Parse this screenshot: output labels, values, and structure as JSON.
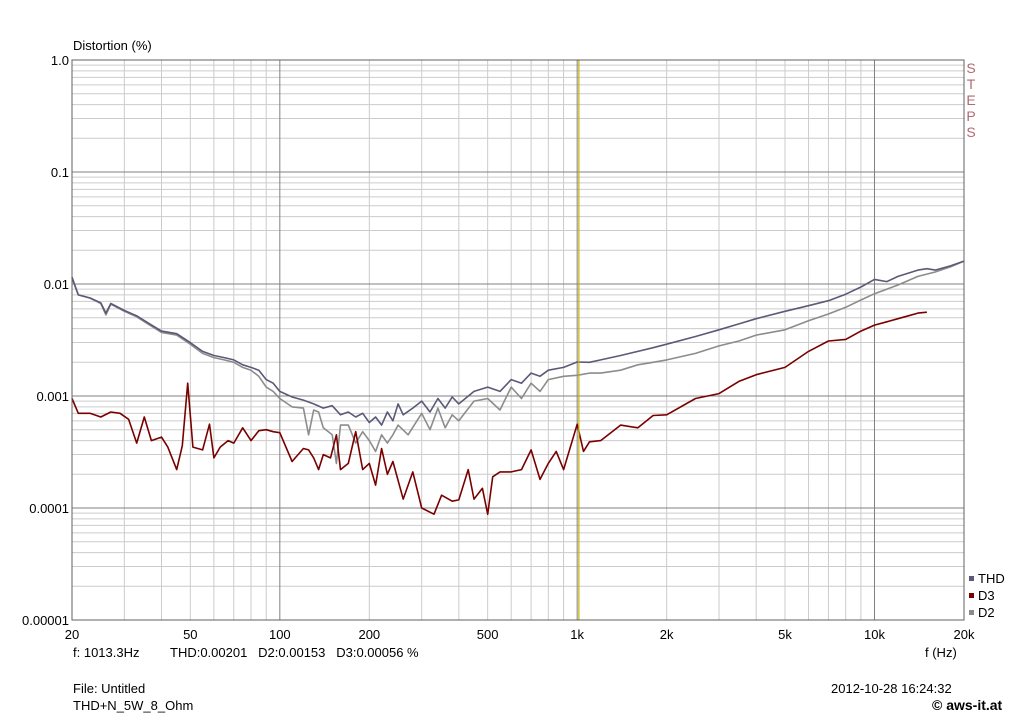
{
  "chart_data": {
    "type": "line",
    "ylabel": "Distortion (%)",
    "xlabel": "f (Hz)",
    "x_scale": "log",
    "y_scale": "log",
    "xlim": [
      20,
      20000
    ],
    "ylim": [
      1e-05,
      1.0
    ],
    "x_ticks": [
      {
        "v": 20,
        "label": "20"
      },
      {
        "v": 50,
        "label": "50"
      },
      {
        "v": 100,
        "label": "100"
      },
      {
        "v": 200,
        "label": "200"
      },
      {
        "v": 500,
        "label": "500"
      },
      {
        "v": 1000,
        "label": "1k"
      },
      {
        "v": 2000,
        "label": "2k"
      },
      {
        "v": 5000,
        "label": "5k"
      },
      {
        "v": 10000,
        "label": "10k"
      },
      {
        "v": 20000,
        "label": "20k"
      }
    ],
    "y_ticks": [
      {
        "v": 1.0,
        "label": "1.0"
      },
      {
        "v": 0.1,
        "label": "0.1"
      },
      {
        "v": 0.01,
        "label": "0.01"
      },
      {
        "v": 0.001,
        "label": "0.001"
      },
      {
        "v": 0.0001,
        "label": "0.0001"
      },
      {
        "v": 1e-05,
        "label": "0.00001"
      }
    ],
    "cursor_x": 1013.3,
    "grid": true,
    "legend_position": "bottom-right",
    "series": [
      {
        "name": "THD",
        "color": "#5a5a78",
        "points": [
          [
            20,
            0.0115
          ],
          [
            21,
            0.008
          ],
          [
            23,
            0.0075
          ],
          [
            25,
            0.0068
          ],
          [
            26,
            0.0055
          ],
          [
            27,
            0.0067
          ],
          [
            30,
            0.0058
          ],
          [
            33,
            0.0052
          ],
          [
            36,
            0.0045
          ],
          [
            40,
            0.0038
          ],
          [
            45,
            0.0036
          ],
          [
            50,
            0.003
          ],
          [
            55,
            0.0025
          ],
          [
            60,
            0.0023
          ],
          [
            65,
            0.0022
          ],
          [
            70,
            0.0021
          ],
          [
            75,
            0.0019
          ],
          [
            80,
            0.0018
          ],
          [
            85,
            0.0017
          ],
          [
            90,
            0.0014
          ],
          [
            95,
            0.0013
          ],
          [
            100,
            0.0011
          ],
          [
            110,
            0.00098
          ],
          [
            120,
            0.00092
          ],
          [
            130,
            0.00085
          ],
          [
            140,
            0.00078
          ],
          [
            150,
            0.00082
          ],
          [
            160,
            0.00068
          ],
          [
            170,
            0.00072
          ],
          [
            180,
            0.00065
          ],
          [
            190,
            0.0007
          ],
          [
            200,
            0.00058
          ],
          [
            210,
            0.00065
          ],
          [
            220,
            0.00055
          ],
          [
            230,
            0.00072
          ],
          [
            240,
            0.0006
          ],
          [
            250,
            0.00085
          ],
          [
            260,
            0.00068
          ],
          [
            280,
            0.00078
          ],
          [
            300,
            0.0009
          ],
          [
            320,
            0.00072
          ],
          [
            340,
            0.00095
          ],
          [
            360,
            0.00078
          ],
          [
            380,
            0.00098
          ],
          [
            400,
            0.00085
          ],
          [
            450,
            0.0011
          ],
          [
            500,
            0.0012
          ],
          [
            550,
            0.0011
          ],
          [
            600,
            0.0014
          ],
          [
            650,
            0.0013
          ],
          [
            700,
            0.0016
          ],
          [
            750,
            0.0015
          ],
          [
            800,
            0.0017
          ],
          [
            900,
            0.0018
          ],
          [
            1000,
            0.00201
          ],
          [
            1100,
            0.002
          ],
          [
            1200,
            0.0021
          ],
          [
            1400,
            0.0023
          ],
          [
            1600,
            0.0025
          ],
          [
            1800,
            0.0027
          ],
          [
            2000,
            0.0029
          ],
          [
            2500,
            0.0034
          ],
          [
            3000,
            0.0039
          ],
          [
            3500,
            0.0044
          ],
          [
            4000,
            0.0049
          ],
          [
            5000,
            0.0057
          ],
          [
            6000,
            0.0064
          ],
          [
            7000,
            0.0071
          ],
          [
            8000,
            0.0081
          ],
          [
            9000,
            0.0094
          ],
          [
            10000,
            0.011
          ],
          [
            11000,
            0.0105
          ],
          [
            12000,
            0.0117
          ],
          [
            13000,
            0.0125
          ],
          [
            14000,
            0.0133
          ],
          [
            15000,
            0.0137
          ],
          [
            16000,
            0.0133
          ],
          [
            18000,
            0.0145
          ],
          [
            20000,
            0.016
          ]
        ]
      },
      {
        "name": "D3",
        "color": "#7a0000",
        "points": [
          [
            20,
            0.00095
          ],
          [
            21,
            0.0007
          ],
          [
            23,
            0.0007
          ],
          [
            25,
            0.00065
          ],
          [
            27,
            0.00072
          ],
          [
            29,
            0.0007
          ],
          [
            31,
            0.00062
          ],
          [
            33,
            0.00038
          ],
          [
            35,
            0.00065
          ],
          [
            37,
            0.0004
          ],
          [
            40,
            0.00043
          ],
          [
            42,
            0.00035
          ],
          [
            45,
            0.00022
          ],
          [
            47,
            0.00036
          ],
          [
            49,
            0.0013
          ],
          [
            51,
            0.00035
          ],
          [
            55,
            0.00033
          ],
          [
            58,
            0.00056
          ],
          [
            60,
            0.00028
          ],
          [
            63,
            0.00035
          ],
          [
            67,
            0.0004
          ],
          [
            70,
            0.00038
          ],
          [
            75,
            0.00052
          ],
          [
            80,
            0.0004
          ],
          [
            85,
            0.00049
          ],
          [
            90,
            0.0005
          ],
          [
            95,
            0.00048
          ],
          [
            100,
            0.00047
          ],
          [
            110,
            0.00026
          ],
          [
            120,
            0.00034
          ],
          [
            125,
            0.00033
          ],
          [
            130,
            0.00028
          ],
          [
            135,
            0.00022
          ],
          [
            140,
            0.0003
          ],
          [
            148,
            0.00028
          ],
          [
            155,
            0.00045
          ],
          [
            160,
            0.00022
          ],
          [
            170,
            0.00025
          ],
          [
            180,
            0.00048
          ],
          [
            190,
            0.00022
          ],
          [
            200,
            0.00025
          ],
          [
            210,
            0.00016
          ],
          [
            220,
            0.00034
          ],
          [
            230,
            0.0002
          ],
          [
            240,
            0.00026
          ],
          [
            260,
            0.00012
          ],
          [
            280,
            0.00021
          ],
          [
            300,
            0.0001
          ],
          [
            330,
            8.8e-05
          ],
          [
            350,
            0.00013
          ],
          [
            380,
            0.000115
          ],
          [
            400,
            0.000118
          ],
          [
            430,
            0.00022
          ],
          [
            450,
            0.00012
          ],
          [
            480,
            0.00015
          ],
          [
            500,
            8.8e-05
          ],
          [
            520,
            0.00019
          ],
          [
            550,
            0.00021
          ],
          [
            600,
            0.00021
          ],
          [
            650,
            0.00022
          ],
          [
            700,
            0.00033
          ],
          [
            750,
            0.00018
          ],
          [
            800,
            0.00025
          ],
          [
            850,
            0.00032
          ],
          [
            900,
            0.00022
          ],
          [
            1000,
            0.00056
          ],
          [
            1050,
            0.00032
          ],
          [
            1100,
            0.00039
          ],
          [
            1200,
            0.0004
          ],
          [
            1400,
            0.00055
          ],
          [
            1600,
            0.00052
          ],
          [
            1800,
            0.00067
          ],
          [
            2000,
            0.00068
          ],
          [
            2500,
            0.00095
          ],
          [
            3000,
            0.00105
          ],
          [
            3500,
            0.00135
          ],
          [
            4000,
            0.00155
          ],
          [
            5000,
            0.0018
          ],
          [
            6000,
            0.0025
          ],
          [
            7000,
            0.0031
          ],
          [
            8000,
            0.0032
          ],
          [
            9000,
            0.0038
          ],
          [
            10000,
            0.0043
          ],
          [
            11000,
            0.0046
          ],
          [
            12000,
            0.0049
          ],
          [
            13000,
            0.0052
          ],
          [
            14000,
            0.0055
          ],
          [
            15000,
            0.0056
          ]
        ]
      },
      {
        "name": "D2",
        "color": "#8c8c8c",
        "points": [
          [
            20,
            0.0113
          ],
          [
            21,
            0.008
          ],
          [
            23,
            0.0075
          ],
          [
            25,
            0.0067
          ],
          [
            26,
            0.0053
          ],
          [
            27,
            0.0066
          ],
          [
            30,
            0.0057
          ],
          [
            33,
            0.0051
          ],
          [
            36,
            0.0044
          ],
          [
            40,
            0.0037
          ],
          [
            45,
            0.0035
          ],
          [
            50,
            0.0029
          ],
          [
            55,
            0.0024
          ],
          [
            60,
            0.0022
          ],
          [
            65,
            0.0021
          ],
          [
            70,
            0.002
          ],
          [
            75,
            0.0018
          ],
          [
            80,
            0.0017
          ],
          [
            85,
            0.0015
          ],
          [
            90,
            0.0012
          ],
          [
            95,
            0.0011
          ],
          [
            100,
            0.00095
          ],
          [
            110,
            0.0008
          ],
          [
            120,
            0.00078
          ],
          [
            125,
            0.00045
          ],
          [
            130,
            0.00075
          ],
          [
            135,
            0.00072
          ],
          [
            140,
            0.00052
          ],
          [
            150,
            0.00045
          ],
          [
            155,
            0.00025
          ],
          [
            160,
            0.00055
          ],
          [
            170,
            0.00055
          ],
          [
            180,
            0.00038
          ],
          [
            190,
            0.00048
          ],
          [
            200,
            0.0004
          ],
          [
            210,
            0.00032
          ],
          [
            220,
            0.00045
          ],
          [
            230,
            0.00038
          ],
          [
            240,
            0.00045
          ],
          [
            250,
            0.00055
          ],
          [
            270,
            0.00045
          ],
          [
            300,
            0.0007
          ],
          [
            320,
            0.0005
          ],
          [
            340,
            0.00078
          ],
          [
            360,
            0.00052
          ],
          [
            380,
            0.00068
          ],
          [
            400,
            0.0006
          ],
          [
            450,
            0.0009
          ],
          [
            500,
            0.00095
          ],
          [
            550,
            0.00075
          ],
          [
            600,
            0.0012
          ],
          [
            650,
            0.00095
          ],
          [
            700,
            0.0013
          ],
          [
            750,
            0.0011
          ],
          [
            800,
            0.0014
          ],
          [
            900,
            0.0015
          ],
          [
            1000,
            0.00153
          ],
          [
            1100,
            0.0016
          ],
          [
            1200,
            0.0016
          ],
          [
            1400,
            0.0017
          ],
          [
            1600,
            0.0019
          ],
          [
            1800,
            0.002
          ],
          [
            2000,
            0.0021
          ],
          [
            2500,
            0.0024
          ],
          [
            3000,
            0.0028
          ],
          [
            3500,
            0.0031
          ],
          [
            4000,
            0.0035
          ],
          [
            5000,
            0.0039
          ],
          [
            6000,
            0.0047
          ],
          [
            7000,
            0.0054
          ],
          [
            8000,
            0.0062
          ],
          [
            9000,
            0.0072
          ],
          [
            10000,
            0.0082
          ],
          [
            12000,
            0.0098
          ],
          [
            14000,
            0.0117
          ],
          [
            16000,
            0.0128
          ],
          [
            18000,
            0.0142
          ],
          [
            20000,
            0.016
          ]
        ]
      }
    ]
  },
  "legend": [
    {
      "label": "THD",
      "color": "#5a5a78"
    },
    {
      "label": "D3",
      "color": "#7a0000"
    },
    {
      "label": "D2",
      "color": "#8c8c8c"
    }
  ],
  "steps_label": "STEPS",
  "readout": {
    "freq": "f: 1013.3Hz",
    "values": "THD:0.00201   D2:0.00153   D3:0.00056 %"
  },
  "file": {
    "name": "File: Untitled",
    "setup": "THD+N_5W_8_Ohm",
    "datetime": "2012-10-28 16:24:32"
  },
  "logo": "© aws-it.at"
}
